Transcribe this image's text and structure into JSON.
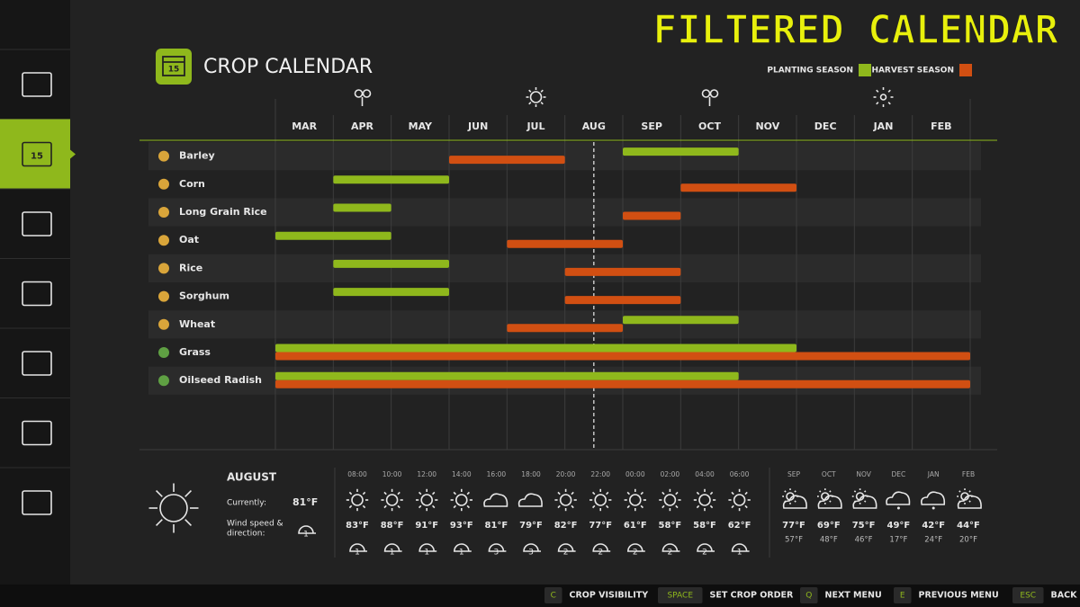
{
  "banner": "FILTERED CALENDAR",
  "header": {
    "title": "CROP CALENDAR",
    "icon_label": "15"
  },
  "legend": {
    "planting": "PLANTING SEASON",
    "harvest": "HARVEST SEASON"
  },
  "months": [
    "MAR",
    "APR",
    "MAY",
    "JUN",
    "JUL",
    "AUG",
    "SEP",
    "OCT",
    "NOV",
    "DEC",
    "JAN",
    "FEB"
  ],
  "crops": [
    {
      "name": "Barley",
      "planting": [
        6,
        8
      ],
      "harvest": [
        3,
        5
      ]
    },
    {
      "name": "Corn",
      "planting": [
        1,
        3
      ],
      "harvest": [
        7,
        9
      ]
    },
    {
      "name": "Long Grain Rice",
      "planting": [
        1,
        2
      ],
      "harvest": [
        6,
        7
      ]
    },
    {
      "name": "Oat",
      "planting": [
        0,
        2
      ],
      "harvest": [
        4,
        6
      ]
    },
    {
      "name": "Rice",
      "planting": [
        1,
        3
      ],
      "harvest": [
        5,
        7
      ]
    },
    {
      "name": "Sorghum",
      "planting": [
        1,
        3
      ],
      "harvest": [
        5,
        7
      ]
    },
    {
      "name": "Wheat",
      "planting": [
        6,
        8
      ],
      "harvest": [
        4,
        6
      ]
    },
    {
      "name": "Grass",
      "planting": [
        0,
        9
      ],
      "harvest": [
        0,
        12
      ]
    },
    {
      "name": "Oilseed Radish",
      "planting": [
        0,
        8
      ],
      "harvest": [
        0,
        12
      ]
    }
  ],
  "today": 5.5,
  "weather": {
    "month": "AUGUST",
    "currently_label": "Currently:",
    "currently": "81°F",
    "wind_label": [
      "Wind speed &",
      "direction:"
    ],
    "wind_now": "1",
    "hourly": [
      {
        "time": "08:00",
        "temp": "83°F",
        "wind": "1"
      },
      {
        "time": "10:00",
        "temp": "88°F",
        "wind": "1"
      },
      {
        "time": "12:00",
        "temp": "91°F",
        "wind": "1"
      },
      {
        "time": "14:00",
        "temp": "93°F",
        "wind": "1"
      },
      {
        "time": "16:00",
        "temp": "81°F",
        "wind": "3"
      },
      {
        "time": "18:00",
        "temp": "79°F",
        "wind": "3"
      },
      {
        "time": "20:00",
        "temp": "82°F",
        "wind": "2"
      },
      {
        "time": "22:00",
        "temp": "77°F",
        "wind": "2"
      },
      {
        "time": "00:00",
        "temp": "61°F",
        "wind": "2"
      },
      {
        "time": "02:00",
        "temp": "58°F",
        "wind": "2"
      },
      {
        "time": "04:00",
        "temp": "58°F",
        "wind": "2"
      },
      {
        "time": "06:00",
        "temp": "62°F",
        "wind": "1"
      }
    ],
    "daily": [
      {
        "day": "SEP",
        "high": "77°F",
        "low": "57°F"
      },
      {
        "day": "OCT",
        "high": "69°F",
        "low": "48°F"
      },
      {
        "day": "NOV",
        "high": "75°F",
        "low": "46°F"
      },
      {
        "day": "DEC",
        "high": "49°F",
        "low": "17°F"
      },
      {
        "day": "JAN",
        "high": "42°F",
        "low": "24°F"
      },
      {
        "day": "FEB",
        "high": "44°F",
        "low": "20°F"
      }
    ]
  },
  "controls": [
    {
      "key": "C",
      "label": "CROP VISIBILITY"
    },
    {
      "key": "SPACE",
      "label": "SET CROP ORDER"
    },
    {
      "key": "Q",
      "label": "NEXT MENU"
    },
    {
      "key": "E",
      "label": "PREVIOUS MENU"
    },
    {
      "key": "ESC",
      "label": "BACK"
    }
  ]
}
